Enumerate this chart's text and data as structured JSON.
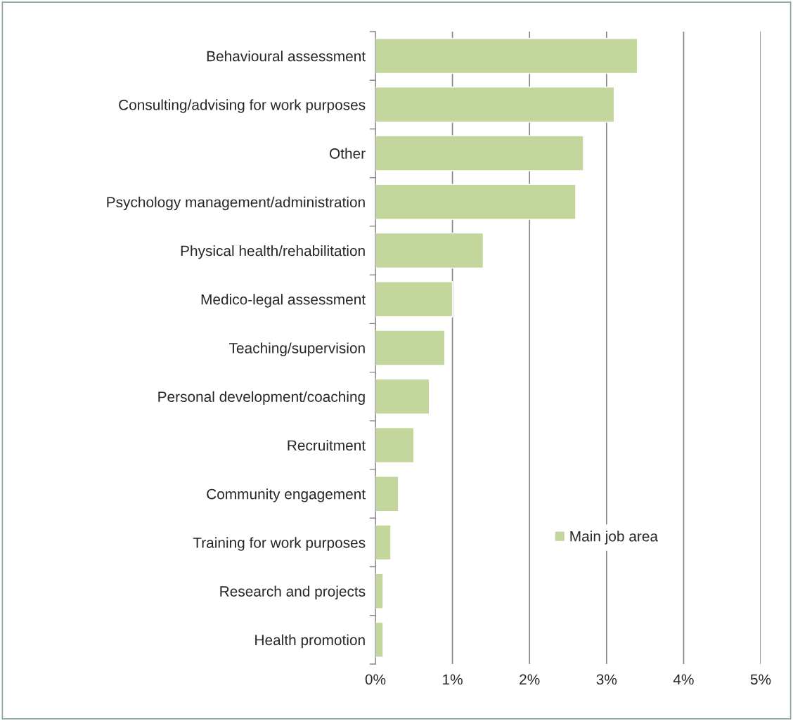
{
  "chart_data": {
    "type": "bar",
    "orientation": "horizontal",
    "categories": [
      "Behavioural assessment",
      "Consulting/advising for work purposes",
      "Other",
      "Psychology management/administration",
      "Physical health/rehabilitation",
      "Medico-legal assessment",
      "Teaching/supervision",
      "Personal development/coaching",
      "Recruitment",
      "Community engagement",
      "Training for work purposes",
      "Research and projects",
      "Health promotion"
    ],
    "series": [
      {
        "name": "Main job area",
        "color": "#c3d69b",
        "values": [
          3.4,
          3.1,
          2.7,
          2.6,
          1.4,
          1.0,
          0.9,
          0.7,
          0.5,
          0.3,
          0.2,
          0.1,
          0.1
        ]
      }
    ],
    "xlim": [
      0,
      5
    ],
    "xticks": [
      {
        "value": 0,
        "label": "0%"
      },
      {
        "value": 1,
        "label": "1%"
      },
      {
        "value": 2,
        "label": "2%"
      },
      {
        "value": 3,
        "label": "3%"
      },
      {
        "value": 4,
        "label": "4%"
      },
      {
        "value": 5,
        "label": "5%"
      }
    ],
    "grid": "x",
    "legend": "bottom right"
  }
}
